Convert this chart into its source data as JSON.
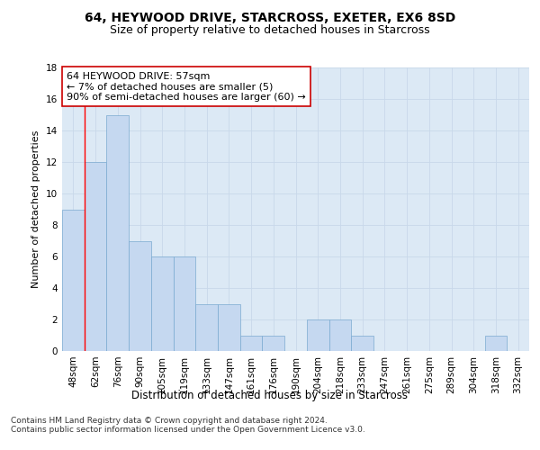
{
  "title": "64, HEYWOOD DRIVE, STARCROSS, EXETER, EX6 8SD",
  "subtitle": "Size of property relative to detached houses in Starcross",
  "xlabel": "Distribution of detached houses by size in Starcross",
  "ylabel": "Number of detached properties",
  "categories": [
    "48sqm",
    "62sqm",
    "76sqm",
    "90sqm",
    "105sqm",
    "119sqm",
    "133sqm",
    "147sqm",
    "161sqm",
    "176sqm",
    "190sqm",
    "204sqm",
    "218sqm",
    "233sqm",
    "247sqm",
    "261sqm",
    "275sqm",
    "289sqm",
    "304sqm",
    "318sqm",
    "332sqm"
  ],
  "values": [
    9,
    12,
    15,
    7,
    6,
    6,
    3,
    3,
    1,
    1,
    0,
    2,
    2,
    1,
    0,
    0,
    0,
    0,
    0,
    1,
    0
  ],
  "bar_color": "#c5d8f0",
  "bar_edge_color": "#7aaad0",
  "highlight_color": "#ff0000",
  "annotation_text": "64 HEYWOOD DRIVE: 57sqm\n← 7% of detached houses are smaller (5)\n90% of semi-detached houses are larger (60) →",
  "annotation_box_color": "#ffffff",
  "annotation_box_edge_color": "#cc0000",
  "ylim": [
    0,
    18
  ],
  "yticks": [
    0,
    2,
    4,
    6,
    8,
    10,
    12,
    14,
    16,
    18
  ],
  "grid_color": "#c8d8ea",
  "background_color": "#dce9f5",
  "footer_text": "Contains HM Land Registry data © Crown copyright and database right 2024.\nContains public sector information licensed under the Open Government Licence v3.0.",
  "title_fontsize": 10,
  "subtitle_fontsize": 9,
  "xlabel_fontsize": 8.5,
  "ylabel_fontsize": 8,
  "tick_fontsize": 7.5,
  "annotation_fontsize": 8,
  "footer_fontsize": 6.5
}
